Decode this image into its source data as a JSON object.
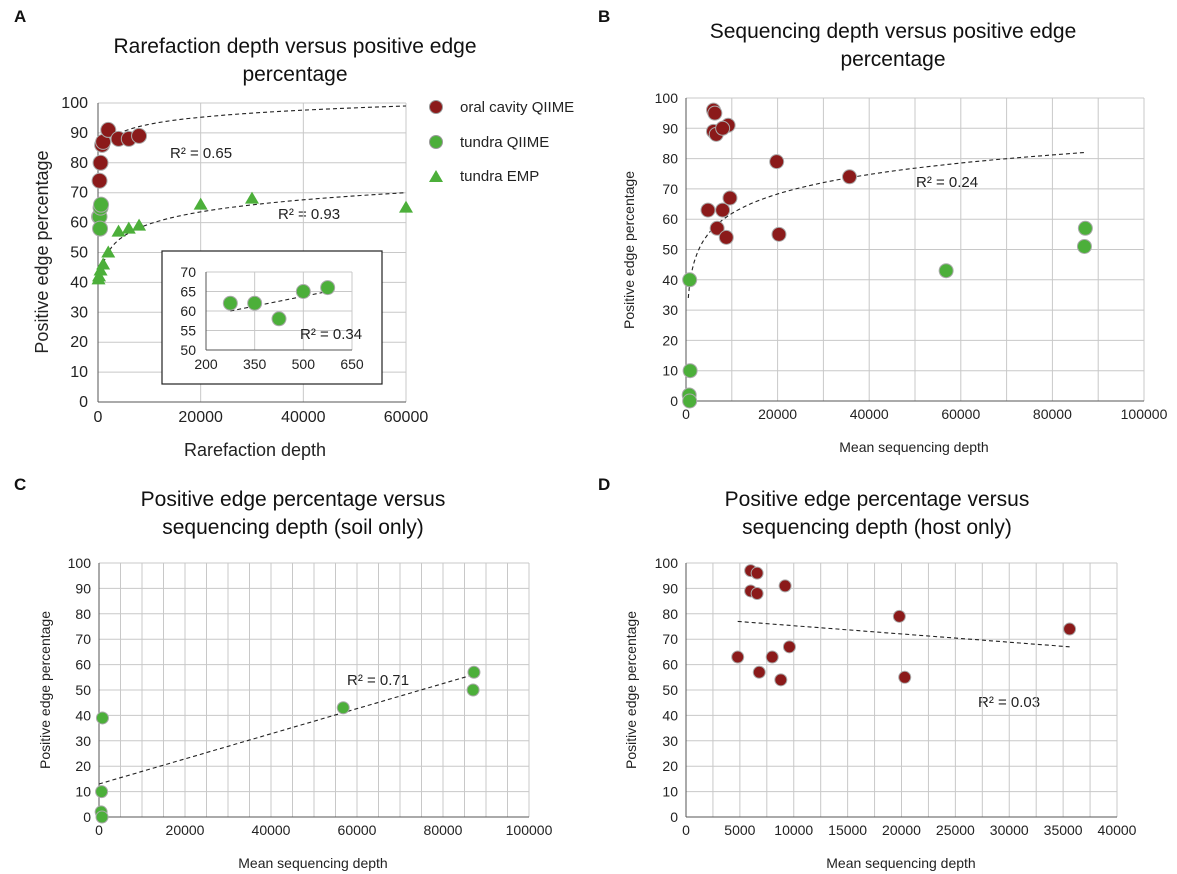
{
  "panels": {
    "A": {
      "letter": "A",
      "title": [
        "Rarefaction depth versus positive edge",
        "percentage"
      ],
      "xlabel": "Rarefaction depth",
      "ylabel": "Positive edge percentage",
      "r2": [
        "R² = 0.65",
        "R² = 0.93"
      ],
      "inset_r2": "R² = 0.34"
    },
    "B": {
      "letter": "B",
      "title": [
        "Sequencing depth versus positive edge",
        "percentage"
      ],
      "xlabel": "Mean sequencing depth",
      "ylabel": "Positive edge percentage",
      "r2": "R² = 0.24"
    },
    "C": {
      "letter": "C",
      "title": [
        "Positive edge percentage versus",
        "sequencing depth (soil only)"
      ],
      "xlabel": "Mean sequencing depth",
      "ylabel": "Positive edge percentage",
      "r2": "R² = 0.71"
    },
    "D": {
      "letter": "D",
      "title": [
        "Positive edge percentage versus",
        "sequencing depth (host only)"
      ],
      "xlabel": "Mean sequencing depth",
      "ylabel": "Positive edge percentage",
      "r2": "R² = 0.03"
    }
  },
  "legend": [
    {
      "label": "oral cavity QIIME",
      "marker": "circle",
      "color": "#8b1a1a"
    },
    {
      "label": "tundra QIIME",
      "marker": "circle",
      "color": "#4caf3a"
    },
    {
      "label": "tundra EMP",
      "marker": "triangle",
      "color": "#4caf3a"
    }
  ],
  "colors": {
    "host": "#8b1a1a",
    "soil": "#4caf3a",
    "grid": "#c8c8c8"
  },
  "chart_data": [
    {
      "panel": "A",
      "type": "scatter",
      "title": "Rarefaction depth versus positive edge percentage",
      "xlabel": "Rarefaction depth",
      "ylabel": "Positive edge percentage",
      "xlim": [
        0,
        60000
      ],
      "ylim": [
        0,
        100
      ],
      "xticks": [
        "0",
        "20000",
        "40000",
        "60000"
      ],
      "yticks": [
        "0",
        "10",
        "20",
        "30",
        "40",
        "50",
        "60",
        "70",
        "80",
        "90",
        "100"
      ],
      "grid": true,
      "legend_position": "right",
      "series": [
        {
          "name": "oral cavity QIIME",
          "marker": "circle",
          "x": [
            300,
            500,
            800,
            1000,
            2000,
            4000,
            6000,
            8000
          ],
          "y": [
            74,
            80,
            86,
            87,
            91,
            88,
            88,
            89
          ]
        },
        {
          "name": "tundra QIIME",
          "marker": "circle",
          "x": [
            200,
            300,
            400,
            500,
            600
          ],
          "y": [
            62,
            62,
            58,
            65,
            66
          ]
        },
        {
          "name": "tundra EMP",
          "marker": "triangle",
          "x": [
            100,
            200,
            500,
            1000,
            2000,
            4000,
            6000,
            8000,
            20000,
            30000,
            60000
          ],
          "y": [
            41,
            42,
            44,
            46,
            50,
            57,
            58,
            59,
            66,
            68,
            65
          ]
        }
      ],
      "trendlines": [
        {
          "label": "R² = 0.65",
          "type": "logarithmic",
          "x_range": [
            1000,
            60000
          ],
          "y_range": [
            85,
            99
          ]
        },
        {
          "label": "R² = 0.93",
          "type": "logarithmic",
          "x_range": [
            500,
            60000
          ],
          "y_range": [
            42,
            70
          ]
        }
      ],
      "inset": {
        "xlim": [
          200,
          800
        ],
        "ylim": [
          50,
          70
        ],
        "xticks": [
          "200",
          "350",
          "500",
          "650"
        ],
        "yticks": [
          "50",
          "55",
          "60",
          "65",
          "70"
        ],
        "x": [
          300,
          400,
          500,
          600,
          700
        ],
        "y": [
          62,
          62,
          58,
          65,
          66
        ],
        "trendline": {
          "label": "R² = 0.34",
          "x_range": [
            300,
            700
          ],
          "y_range": [
            60,
            65
          ]
        }
      }
    },
    {
      "panel": "B",
      "type": "scatter",
      "title": "Sequencing depth versus positive edge percentage",
      "xlabel": "Mean sequencing depth",
      "ylabel": "Positive edge percentage",
      "xlim": [
        0,
        100000
      ],
      "ylim": [
        0,
        100
      ],
      "xticks": [
        "0",
        "20000",
        "40000",
        "60000",
        "80000",
        "100000"
      ],
      "yticks": [
        "0",
        "10",
        "20",
        "30",
        "40",
        "50",
        "60",
        "70",
        "80",
        "90",
        "100"
      ],
      "grid": true,
      "series": [
        {
          "group": "host",
          "x": [
            6000,
            6300,
            6000,
            6600,
            9200,
            8000,
            9600,
            4800,
            6800,
            8000,
            8800,
            19800,
            20300,
            35700
          ],
          "y": [
            96,
            95,
            89,
            88,
            91,
            90,
            67,
            63,
            57,
            63,
            54,
            79,
            55,
            74
          ]
        },
        {
          "group": "soil",
          "x": [
            800,
            900,
            700,
            800,
            56800,
            87200,
            87000
          ],
          "y": [
            40,
            10,
            2,
            0,
            43,
            57,
            51
          ]
        }
      ],
      "trendline": {
        "label": "R² = 0.24",
        "type": "logarithmic",
        "x_range": [
          500,
          87000
        ],
        "y_range": [
          34,
          82
        ]
      }
    },
    {
      "panel": "C",
      "type": "scatter",
      "title": "Positive edge percentage versus sequencing depth (soil only)",
      "xlabel": "Mean sequencing depth",
      "ylabel": "Positive edge percentage",
      "xlim": [
        0,
        100000
      ],
      "ylim": [
        0,
        100
      ],
      "xticks": [
        "0",
        "20000",
        "40000",
        "60000",
        "80000",
        "100000"
      ],
      "yticks": [
        "0",
        "10",
        "20",
        "30",
        "40",
        "50",
        "60",
        "70",
        "80",
        "90",
        "100"
      ],
      "grid": true,
      "series": [
        {
          "group": "soil",
          "x": [
            800,
            600,
            500,
            700,
            56800,
            87200,
            87000
          ],
          "y": [
            39,
            10,
            2,
            0,
            43,
            57,
            50
          ]
        }
      ],
      "trendline": {
        "label": "R² = 0.71",
        "type": "linear",
        "x_range": [
          0,
          87000
        ],
        "y_range": [
          13,
          56
        ]
      }
    },
    {
      "panel": "D",
      "type": "scatter",
      "title": "Positive edge percentage versus sequencing depth (host only)",
      "xlabel": "Mean sequencing depth",
      "ylabel": "Positive edge percentage",
      "xlim": [
        0,
        40000
      ],
      "ylim": [
        0,
        100
      ],
      "xticks": [
        "0",
        "5000",
        "10000",
        "15000",
        "20000",
        "25000",
        "30000",
        "35000",
        "40000"
      ],
      "yticks": [
        "0",
        "10",
        "20",
        "30",
        "40",
        "50",
        "60",
        "70",
        "80",
        "90",
        "100"
      ],
      "grid": true,
      "series": [
        {
          "group": "host",
          "x": [
            6000,
            6600,
            6000,
            6600,
            9200,
            9600,
            4800,
            6800,
            8000,
            8800,
            19800,
            20300,
            35600
          ],
          "y": [
            97,
            96,
            89,
            88,
            91,
            67,
            63,
            57,
            63,
            54,
            79,
            55,
            74
          ]
        }
      ],
      "trendline": {
        "label": "R² = 0.03",
        "type": "linear",
        "x_range": [
          4800,
          35600
        ],
        "y_range": [
          77,
          67
        ]
      }
    }
  ]
}
